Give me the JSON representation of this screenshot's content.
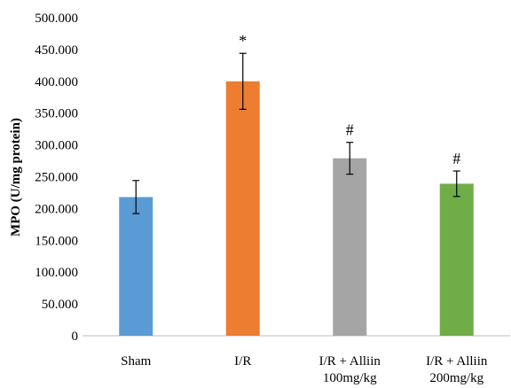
{
  "chart_data": {
    "type": "bar",
    "title": "",
    "xlabel": "",
    "ylabel": "MPO (U/mg protein)",
    "ylim": [
      0,
      500
    ],
    "yticks": [
      "0",
      "50.000",
      "100.000",
      "150.000",
      "200.000",
      "250.000",
      "300.000",
      "350.000",
      "400.000",
      "450.000",
      "500.000"
    ],
    "grid": false,
    "legend": "none",
    "categories": [
      [
        "Sham"
      ],
      [
        "I/R"
      ],
      [
        "I/R + Alliin",
        "100mg/kg"
      ],
      [
        "I/R + Alliin",
        "200mg/kg"
      ]
    ],
    "values": [
      218,
      400,
      279,
      239
    ],
    "errors": [
      26,
      44,
      25,
      20
    ],
    "annotations": [
      "",
      "*",
      "#",
      "#"
    ],
    "colors": [
      "#5b9bd5",
      "#ed7d31",
      "#a5a5a5",
      "#70ad47"
    ]
  }
}
